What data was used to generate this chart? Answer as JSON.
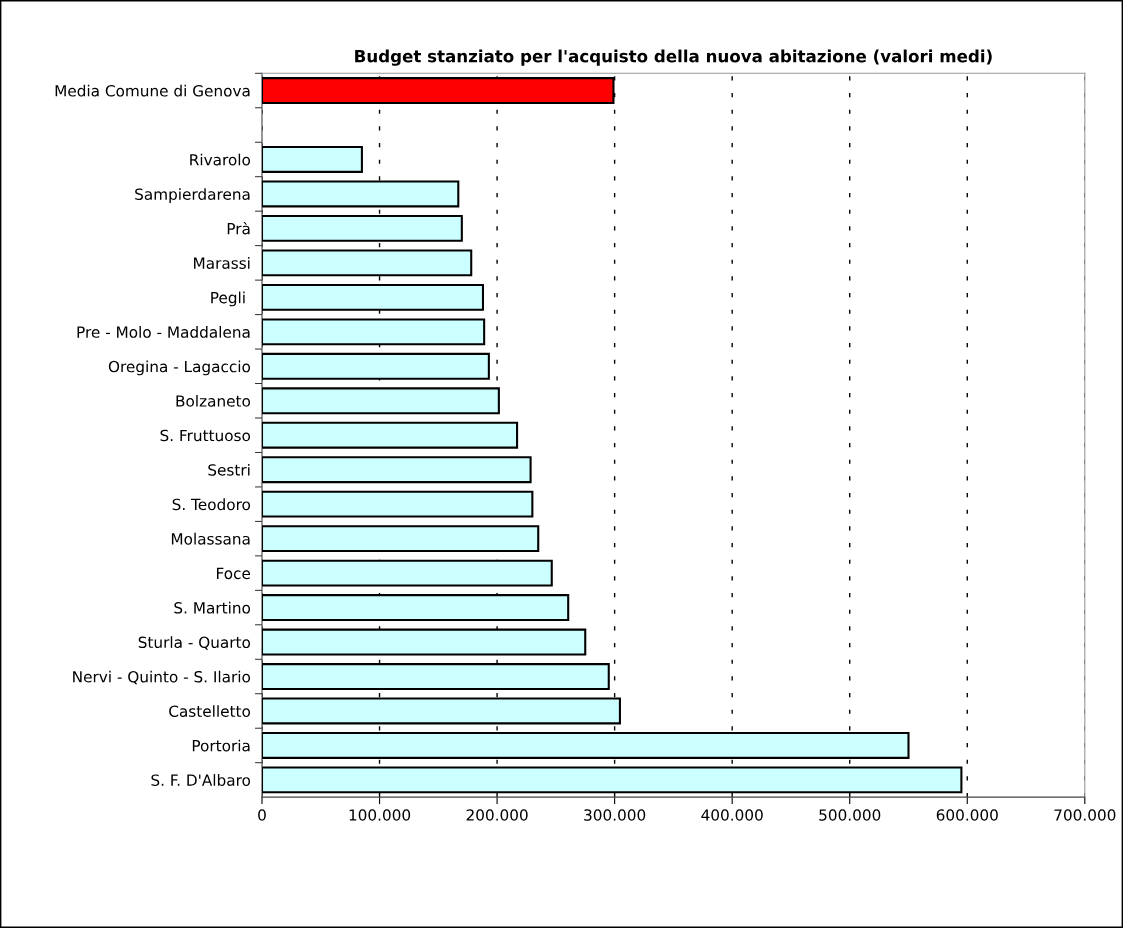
{
  "chart_data": {
    "type": "bar",
    "orientation": "horizontal",
    "title": "Budget stanziato per l'acquisto della nuova abitazione (valori medi)",
    "categories": [
      "Media Comune di Genova",
      null,
      "Rivarolo",
      "Sampierdarena",
      "Prà",
      "Marassi",
      "Pegli ",
      "Pre - Molo - Maddalena",
      "Oregina - Lagaccio",
      "Bolzaneto",
      "S. Fruttuoso",
      "Sestri",
      "S. Teodoro",
      "Molassana",
      "Foce",
      "S. Martino",
      "Sturla - Quarto",
      "Nervi - Quinto - S. Ilario",
      "Castelletto",
      "Portoria",
      "S. F. D'Albaro"
    ],
    "values": [
      299000,
      null,
      85000,
      167000,
      170000,
      178000,
      188000,
      189000,
      193000,
      201500,
      217000,
      228500,
      230000,
      235000,
      246500,
      260500,
      275000,
      295000,
      304500,
      550000,
      595000
    ],
    "colors": [
      "#ff0000",
      null,
      "#ccffff",
      "#ccffff",
      "#ccffff",
      "#ccffff",
      "#ccffff",
      "#ccffff",
      "#ccffff",
      "#ccffff",
      "#ccffff",
      "#ccffff",
      "#ccffff",
      "#ccffff",
      "#ccffff",
      "#ccffff",
      "#ccffff",
      "#ccffff",
      "#ccffff",
      "#ccffff",
      "#ccffff"
    ],
    "xlim": [
      0,
      700000
    ],
    "xticks": [
      0,
      {
        "value": 100000,
        "label": "100.000"
      },
      {
        "value": 200000,
        "label": "200.000"
      },
      {
        "value": 300000,
        "label": "300.000"
      },
      {
        "value": 400000,
        "label": "400.000"
      },
      {
        "value": 500000,
        "label": "500.000"
      },
      {
        "value": 600000,
        "label": "600.000"
      },
      {
        "value": 700000,
        "label": "700.000"
      }
    ],
    "grid": "x"
  }
}
